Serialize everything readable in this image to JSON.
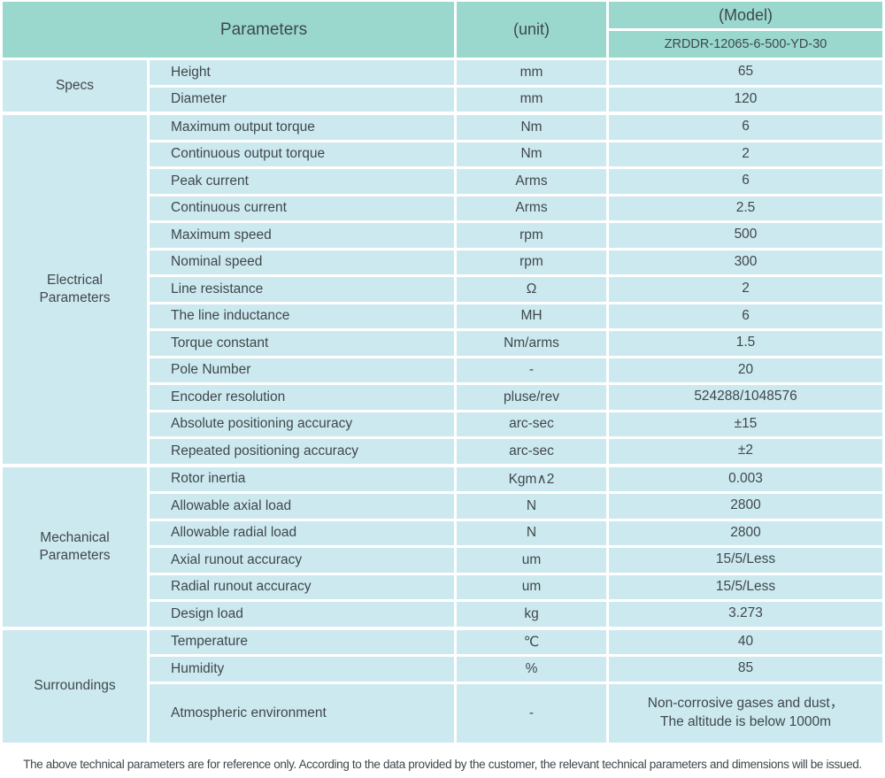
{
  "colors": {
    "header_bg": "#9ad8ce",
    "cell_bg": "#cde9f0",
    "text": "#3e484b",
    "page_bg": "#ffffff",
    "divider": "#ffffff"
  },
  "header": {
    "parameters_label": "Parameters",
    "unit_label": "(unit)",
    "model_label": "(Model)",
    "model_value": "ZRDDR-12065-6-500-YD-30"
  },
  "sections": [
    {
      "id": "specs",
      "group_lines": [
        "Specs"
      ],
      "rows": [
        {
          "name": "Height",
          "unit": "mm",
          "value": "65"
        },
        {
          "name": "Diameter",
          "unit": "mm",
          "value": "120"
        }
      ]
    },
    {
      "id": "electrical",
      "group_lines": [
        "Electrical",
        "Parameters"
      ],
      "rows": [
        {
          "name": "Maximum output torque",
          "unit": "Nm",
          "value": "6"
        },
        {
          "name": "Continuous output torque",
          "unit": "Nm",
          "value": "2"
        },
        {
          "name": "Peak current",
          "unit": "Arms",
          "value": "6"
        },
        {
          "name": "Continuous current",
          "unit": "Arms",
          "value": "2.5"
        },
        {
          "name": "Maximum speed",
          "unit": "rpm",
          "value": "500"
        },
        {
          "name": "Nominal speed",
          "unit": "rpm",
          "value": "300"
        },
        {
          "name": "Line resistance",
          "unit": "Ω",
          "value": "2"
        },
        {
          "name": "The line inductance",
          "unit": "MH",
          "value": "6"
        },
        {
          "name": "Torque constant",
          "unit": "Nm/arms",
          "value": "1.5"
        },
        {
          "name": "Pole Number",
          "unit": "-",
          "value": "20"
        },
        {
          "name": "Encoder resolution",
          "unit": "pluse/rev",
          "value": "524288/1048576"
        },
        {
          "name": "Absolute positioning accuracy",
          "unit": "arc-sec",
          "value": "±15"
        },
        {
          "name": "Repeated positioning accuracy",
          "unit": "arc-sec",
          "value": "±2"
        }
      ]
    },
    {
      "id": "mechanical",
      "group_lines": [
        "Mechanical",
        "Parameters"
      ],
      "rows": [
        {
          "name": "Rotor inertia",
          "unit": "Kgm∧2",
          "value": "0.003"
        },
        {
          "name": "Allowable axial load",
          "unit": "N",
          "value": "2800"
        },
        {
          "name": "Allowable radial load",
          "unit": "N",
          "value": "2800"
        },
        {
          "name": "Axial runout accuracy",
          "unit": "um",
          "value": "15/5/Less"
        },
        {
          "name": "Radial runout accuracy",
          "unit": "um",
          "value": "15/5/Less"
        },
        {
          "name": "Design load",
          "unit": "kg",
          "value": "3.273"
        }
      ]
    },
    {
      "id": "surroundings",
      "group_lines": [
        "Surroundings"
      ],
      "rows": [
        {
          "name": "Temperature",
          "unit": "℃",
          "value": "40"
        },
        {
          "name": "Humidity",
          "unit": "%",
          "value": "85"
        },
        {
          "name": "Atmospheric environment",
          "unit": "-",
          "tall": true,
          "value_lines": [
            "Non-corrosive gases and dust，",
            "The altitude is below 1000m"
          ]
        }
      ]
    }
  ],
  "footer": {
    "note": "The above technical parameters are for reference only. According to the data provided by the customer, the relevant technical parameters and dimensions will be issued."
  }
}
